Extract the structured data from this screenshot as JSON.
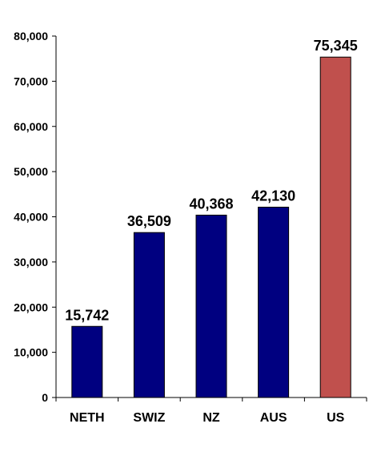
{
  "chart_data": {
    "type": "bar",
    "categories": [
      "NETH",
      "SWIZ",
      "NZ",
      "AUS",
      "US"
    ],
    "values": [
      15742,
      36509,
      40368,
      42130,
      75345
    ],
    "data_labels": [
      "15,742",
      "36,509",
      "40,368",
      "42,130",
      "75,345"
    ],
    "bar_colors": [
      "#000080",
      "#000080",
      "#000080",
      "#000080",
      "#C0504D"
    ],
    "ylim": [
      0,
      80000
    ],
    "yticks": [
      0,
      10000,
      20000,
      30000,
      40000,
      50000,
      60000,
      70000,
      80000
    ],
    "ytick_labels": [
      "0",
      "10,000",
      "20,000",
      "30,000",
      "40,000",
      "50,000",
      "60,000",
      "70,000",
      "80,000"
    ],
    "title": "",
    "xlabel": "",
    "ylabel": "",
    "grid": false,
    "legend": false
  }
}
